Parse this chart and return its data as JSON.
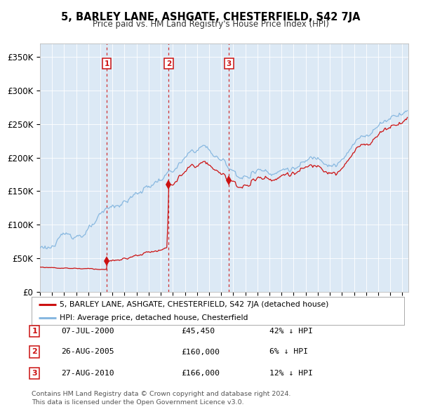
{
  "title": "5, BARLEY LANE, ASHGATE, CHESTERFIELD, S42 7JA",
  "subtitle": "Price paid vs. HM Land Registry's House Price Index (HPI)",
  "bg_color": "#dce9f5",
  "hpi_color": "#88b8e0",
  "price_color": "#cc1111",
  "dashed_line_color": "#cc1111",
  "xlim_start": 1995.0,
  "xlim_end": 2025.5,
  "ylim_min": 0,
  "ylim_max": 370000,
  "yticks": [
    0,
    50000,
    100000,
    150000,
    200000,
    250000,
    300000,
    350000
  ],
  "ytick_labels": [
    "£0",
    "£50K",
    "£100K",
    "£150K",
    "£200K",
    "£250K",
    "£300K",
    "£350K"
  ],
  "sales": [
    {
      "num": 1,
      "date": "07-JUL-2000",
      "year": 2000.52,
      "price": 45450,
      "hpi_pct": "42%",
      "direction": "↓"
    },
    {
      "num": 2,
      "date": "26-AUG-2005",
      "year": 2005.65,
      "price": 160000,
      "hpi_pct": "6%",
      "direction": "↓"
    },
    {
      "num": 3,
      "date": "27-AUG-2010",
      "year": 2010.65,
      "price": 166000,
      "hpi_pct": "12%",
      "direction": "↓"
    }
  ],
  "legend_entries": [
    "5, BARLEY LANE, ASHGATE, CHESTERFIELD, S42 7JA (detached house)",
    "HPI: Average price, detached house, Chesterfield"
  ],
  "footer_lines": [
    "Contains HM Land Registry data © Crown copyright and database right 2024.",
    "This data is licensed under the Open Government Licence v3.0."
  ]
}
